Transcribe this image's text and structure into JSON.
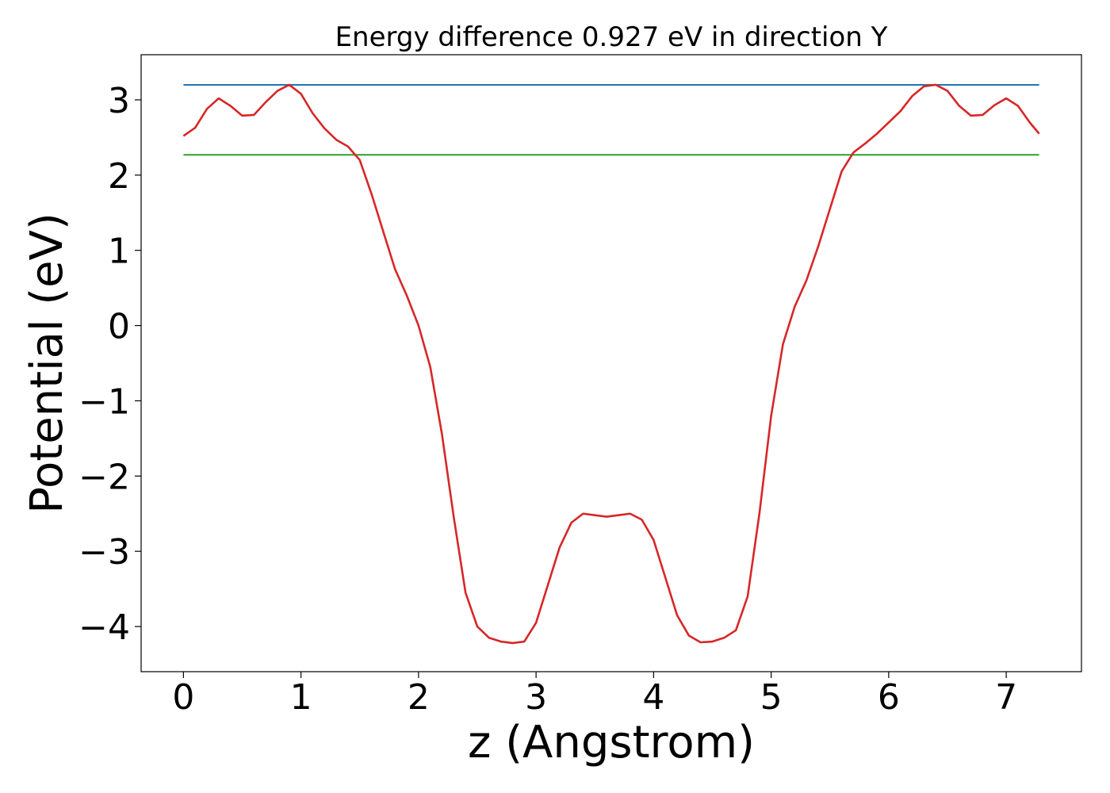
{
  "chart_data": {
    "type": "line",
    "title": "Energy difference 0.927 eV in direction Y",
    "xlabel": "z (Angstrom)",
    "ylabel": "Potential (eV)",
    "xlim": [
      -0.36,
      7.64
    ],
    "ylim": [
      -4.6,
      3.6
    ],
    "xticks": [
      0,
      1,
      2,
      3,
      4,
      5,
      6,
      7
    ],
    "yticks": [
      -4,
      -3,
      -2,
      -1,
      0,
      1,
      2,
      3
    ],
    "xtick_labels": [
      "0",
      "1",
      "2",
      "3",
      "4",
      "5",
      "6",
      "7"
    ],
    "ytick_labels": [
      "−4",
      "−3",
      "−2",
      "−1",
      "0",
      "1",
      "2",
      "3"
    ],
    "grid": false,
    "series": [
      {
        "color": "#1f77b4",
        "x": [
          0,
          7.28
        ],
        "y": [
          3.2,
          3.2
        ]
      },
      {
        "color": "#2ca02c",
        "x": [
          0,
          7.28
        ],
        "y": [
          2.27,
          2.27
        ]
      },
      {
        "color": "#d62728",
        "x": [
          0,
          0.1,
          0.2,
          0.3,
          0.4,
          0.5,
          0.6,
          0.7,
          0.8,
          0.9,
          1.0,
          1.1,
          1.2,
          1.3,
          1.4,
          1.5,
          1.6,
          1.7,
          1.8,
          1.9,
          2.0,
          2.1,
          2.2,
          2.3,
          2.4,
          2.5,
          2.6,
          2.7,
          2.8,
          2.9,
          3.0,
          3.1,
          3.2,
          3.3,
          3.4,
          3.5,
          3.6,
          3.7,
          3.8,
          3.9,
          4.0,
          4.1,
          4.2,
          4.3,
          4.4,
          4.5,
          4.6,
          4.7,
          4.8,
          4.9,
          5.0,
          5.1,
          5.2,
          5.3,
          5.4,
          5.5,
          5.6,
          5.7,
          5.8,
          5.9,
          6.0,
          6.1,
          6.2,
          6.3,
          6.4,
          6.5,
          6.6,
          6.7,
          6.8,
          6.9,
          7.0,
          7.1,
          7.2,
          7.28
        ],
        "y": [
          2.52,
          2.63,
          2.88,
          3.02,
          2.92,
          2.79,
          2.8,
          2.97,
          3.12,
          3.2,
          3.08,
          2.82,
          2.62,
          2.47,
          2.38,
          2.2,
          1.75,
          1.25,
          0.75,
          0.4,
          0.0,
          -0.55,
          -1.45,
          -2.55,
          -3.55,
          -4.0,
          -4.15,
          -4.2,
          -4.22,
          -4.2,
          -3.95,
          -3.45,
          -2.95,
          -2.62,
          -2.5,
          -2.52,
          -2.54,
          -2.52,
          -2.5,
          -2.58,
          -2.85,
          -3.35,
          -3.85,
          -4.12,
          -4.21,
          -4.2,
          -4.15,
          -4.05,
          -3.6,
          -2.5,
          -1.2,
          -0.25,
          0.25,
          0.6,
          1.05,
          1.55,
          2.05,
          2.3,
          2.42,
          2.55,
          2.7,
          2.85,
          3.05,
          3.18,
          3.2,
          3.12,
          2.92,
          2.79,
          2.8,
          2.93,
          3.02,
          2.92,
          2.7,
          2.55
        ]
      }
    ]
  }
}
